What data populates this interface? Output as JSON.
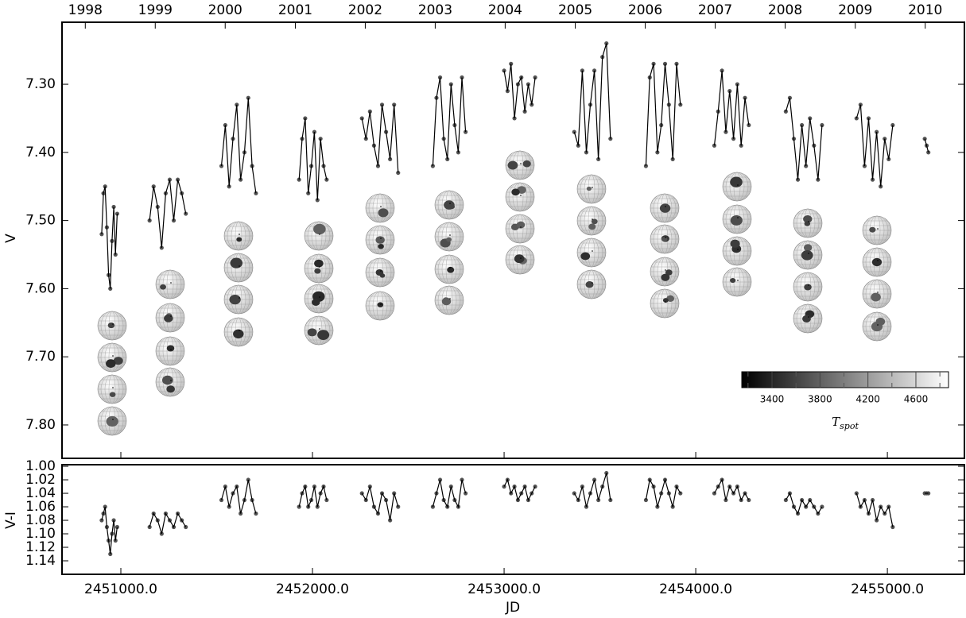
{
  "chart_data": [
    {
      "type": "line",
      "ylabel": "V",
      "xlim": [
        2450693,
        2455402
      ],
      "ylim": [
        7.209,
        7.849
      ],
      "y_inverted": true,
      "yticks": [
        {
          "value": 7.3,
          "label": "7.30"
        },
        {
          "value": 7.4,
          "label": "7.40"
        },
        {
          "value": 7.5,
          "label": "7.50"
        },
        {
          "value": 7.6,
          "label": "7.60"
        },
        {
          "value": 7.7,
          "label": "7.70"
        },
        {
          "value": 7.8,
          "label": "7.80"
        }
      ],
      "x2ticks": [
        {
          "value": 2450814.5,
          "label": "1998"
        },
        {
          "value": 2451179.5,
          "label": "1999"
        },
        {
          "value": 2451544.5,
          "label": "2000"
        },
        {
          "value": 2451910.5,
          "label": "2001"
        },
        {
          "value": 2452275.5,
          "label": "2002"
        },
        {
          "value": 2452640.5,
          "label": "2003"
        },
        {
          "value": 2453005.5,
          "label": "2004"
        },
        {
          "value": 2453371.5,
          "label": "2005"
        },
        {
          "value": 2453736.5,
          "label": "2006"
        },
        {
          "value": 2454101.5,
          "label": "2007"
        },
        {
          "value": 2454466.5,
          "label": "2008"
        },
        {
          "value": 2454832.5,
          "label": "2009"
        },
        {
          "value": 2455197.5,
          "label": "2010"
        }
      ],
      "color": "#555555",
      "line_color": "#000000",
      "colorbar": {
        "lim": [
          3148,
          4872
        ],
        "ticks": [
          3400,
          3800,
          4200,
          4600
        ],
        "minor_ticks": [
          3200,
          3600,
          4000,
          4400,
          4800
        ],
        "label": "T",
        "label_subscript": "spot"
      },
      "x": [
        2450900,
        2450909,
        2450918,
        2450927,
        2450936,
        2450945,
        2450954,
        2450963,
        2450972,
        2450981,
        null,
        2451150,
        2451171,
        2451192,
        2451213,
        2451234,
        2451255,
        2451276,
        2451297,
        2451318,
        2451339,
        null,
        2451525,
        2451545,
        2451565,
        2451585,
        2451605,
        2451625,
        2451645,
        2451665,
        2451685,
        2451705,
        null,
        2451930,
        2451946,
        2451962,
        2451978,
        2451994,
        2452010,
        2452026,
        2452042,
        2452058,
        2452074,
        null,
        2452258,
        2452279,
        2452300,
        2452321,
        2452342,
        2452363,
        2452384,
        2452405,
        2452426,
        2452447,
        null,
        2452628,
        2452647,
        2452666,
        2452685,
        2452704,
        2452723,
        2452742,
        2452761,
        2452780,
        2452799,
        null,
        2453000,
        2453018,
        2453036,
        2453054,
        2453072,
        2453090,
        2453108,
        2453126,
        2453144,
        2453162,
        null,
        2453366,
        2453387,
        2453408,
        2453429,
        2453450,
        2453471,
        2453492,
        2453513,
        2453534,
        2453555,
        null,
        2453740,
        2453760,
        2453780,
        2453800,
        2453820,
        2453840,
        2453860,
        2453880,
        2453900,
        2453920,
        null,
        2454097,
        2454117,
        2454137,
        2454157,
        2454177,
        2454197,
        2454217,
        2454237,
        2454257,
        2454277,
        null,
        2454470,
        2454491,
        2454512,
        2454533,
        2454554,
        2454575,
        2454596,
        2454617,
        2454638,
        2454659,
        null,
        2454839,
        2454860,
        2454881,
        2454902,
        2454923,
        2454944,
        2454965,
        2454986,
        2455007,
        2455028,
        null,
        2455195,
        2455205,
        2455214
      ],
      "values": [
        7.52,
        7.46,
        7.45,
        7.51,
        7.58,
        7.6,
        7.53,
        7.48,
        7.55,
        7.49,
        null,
        7.5,
        7.45,
        7.48,
        7.54,
        7.46,
        7.44,
        7.5,
        7.44,
        7.46,
        7.49,
        null,
        7.42,
        7.36,
        7.45,
        7.38,
        7.33,
        7.44,
        7.4,
        7.32,
        7.42,
        7.46,
        null,
        7.44,
        7.38,
        7.35,
        7.46,
        7.42,
        7.37,
        7.47,
        7.38,
        7.42,
        7.44,
        null,
        7.35,
        7.38,
        7.34,
        7.39,
        7.42,
        7.33,
        7.37,
        7.41,
        7.33,
        7.43,
        null,
        7.42,
        7.32,
        7.29,
        7.38,
        7.41,
        7.3,
        7.36,
        7.4,
        7.29,
        7.37,
        null,
        7.28,
        7.31,
        7.27,
        7.35,
        7.3,
        7.29,
        7.34,
        7.3,
        7.33,
        7.29,
        null,
        7.37,
        7.39,
        7.28,
        7.4,
        7.33,
        7.28,
        7.41,
        7.26,
        7.24,
        7.38,
        null,
        7.42,
        7.29,
        7.27,
        7.4,
        7.36,
        7.27,
        7.33,
        7.41,
        7.27,
        7.33,
        null,
        7.39,
        7.34,
        7.28,
        7.37,
        7.31,
        7.38,
        7.3,
        7.39,
        7.32,
        7.36,
        null,
        7.34,
        7.32,
        7.38,
        7.44,
        7.36,
        7.42,
        7.35,
        7.39,
        7.44,
        7.36,
        null,
        7.35,
        7.33,
        7.42,
        7.35,
        7.44,
        7.37,
        7.45,
        7.38,
        7.41,
        7.36,
        null,
        7.38,
        7.39,
        7.4
      ]
    },
    {
      "type": "line",
      "ylabel": "V-I",
      "xlabel": "JD",
      "xlim": [
        2450693,
        2455402
      ],
      "ylim": [
        0.9976,
        1.16
      ],
      "y_inverted": true,
      "yticks": [
        {
          "value": 1.0,
          "label": "1.00"
        },
        {
          "value": 1.02,
          "label": "1.02"
        },
        {
          "value": 1.04,
          "label": "1.04"
        },
        {
          "value": 1.06,
          "label": "1.06"
        },
        {
          "value": 1.08,
          "label": "1.08"
        },
        {
          "value": 1.1,
          "label": "1.10"
        },
        {
          "value": 1.12,
          "label": "1.12"
        },
        {
          "value": 1.14,
          "label": "1.14"
        }
      ],
      "xticks": [
        {
          "value": 2451000,
          "label": "2451000.0"
        },
        {
          "value": 2452000,
          "label": "2452000.0"
        },
        {
          "value": 2453000,
          "label": "2453000.0"
        },
        {
          "value": 2454000,
          "label": "2454000.0"
        },
        {
          "value": 2455000,
          "label": "2455000.0"
        }
      ],
      "color": "#555555",
      "line_color": "#000000",
      "x": [
        2450900,
        2450909,
        2450918,
        2450927,
        2450936,
        2450945,
        2450954,
        2450963,
        2450972,
        2450981,
        null,
        2451150,
        2451171,
        2451192,
        2451213,
        2451234,
        2451255,
        2451276,
        2451297,
        2451318,
        2451339,
        null,
        2451525,
        2451545,
        2451565,
        2451585,
        2451605,
        2451625,
        2451645,
        2451665,
        2451685,
        2451705,
        null,
        2451930,
        2451946,
        2451962,
        2451978,
        2451994,
        2452010,
        2452026,
        2452042,
        2452058,
        2452074,
        null,
        2452258,
        2452279,
        2452300,
        2452321,
        2452342,
        2452363,
        2452384,
        2452405,
        2452426,
        2452447,
        null,
        2452628,
        2452647,
        2452666,
        2452685,
        2452704,
        2452723,
        2452742,
        2452761,
        2452780,
        2452799,
        null,
        2453000,
        2453018,
        2453036,
        2453054,
        2453072,
        2453090,
        2453108,
        2453126,
        2453144,
        2453162,
        null,
        2453366,
        2453387,
        2453408,
        2453429,
        2453450,
        2453471,
        2453492,
        2453513,
        2453534,
        2453555,
        null,
        2453740,
        2453760,
        2453780,
        2453800,
        2453820,
        2453840,
        2453860,
        2453880,
        2453900,
        2453920,
        null,
        2454097,
        2454117,
        2454137,
        2454157,
        2454177,
        2454197,
        2454217,
        2454237,
        2454257,
        2454277,
        null,
        2454470,
        2454491,
        2454512,
        2454533,
        2454554,
        2454575,
        2454596,
        2454617,
        2454638,
        2454659,
        null,
        2454839,
        2454860,
        2454881,
        2454902,
        2454923,
        2454944,
        2454965,
        2454986,
        2455007,
        2455028,
        null,
        2455195,
        2455205,
        2455214
      ],
      "values": [
        1.08,
        1.07,
        1.06,
        1.09,
        1.11,
        1.13,
        1.1,
        1.08,
        1.11,
        1.09,
        null,
        1.09,
        1.07,
        1.08,
        1.1,
        1.07,
        1.08,
        1.09,
        1.07,
        1.08,
        1.09,
        null,
        1.05,
        1.03,
        1.06,
        1.04,
        1.03,
        1.07,
        1.05,
        1.02,
        1.05,
        1.07,
        null,
        1.06,
        1.04,
        1.03,
        1.06,
        1.05,
        1.03,
        1.06,
        1.04,
        1.03,
        1.05,
        null,
        1.04,
        1.05,
        1.03,
        1.06,
        1.07,
        1.04,
        1.05,
        1.08,
        1.04,
        1.06,
        null,
        1.06,
        1.04,
        1.02,
        1.05,
        1.06,
        1.03,
        1.05,
        1.06,
        1.02,
        1.04,
        null,
        1.03,
        1.02,
        1.04,
        1.03,
        1.05,
        1.04,
        1.03,
        1.05,
        1.04,
        1.03,
        null,
        1.04,
        1.05,
        1.03,
        1.06,
        1.04,
        1.02,
        1.05,
        1.03,
        1.01,
        1.05,
        null,
        1.05,
        1.02,
        1.03,
        1.06,
        1.04,
        1.02,
        1.04,
        1.06,
        1.03,
        1.04,
        null,
        1.04,
        1.03,
        1.02,
        1.05,
        1.03,
        1.04,
        1.03,
        1.05,
        1.04,
        1.05,
        null,
        1.05,
        1.04,
        1.06,
        1.07,
        1.05,
        1.06,
        1.05,
        1.06,
        1.07,
        1.06,
        null,
        1.04,
        1.06,
        1.05,
        1.07,
        1.05,
        1.08,
        1.06,
        1.07,
        1.06,
        1.09,
        null,
        1.04,
        1.04,
        1.04
      ]
    }
  ]
}
